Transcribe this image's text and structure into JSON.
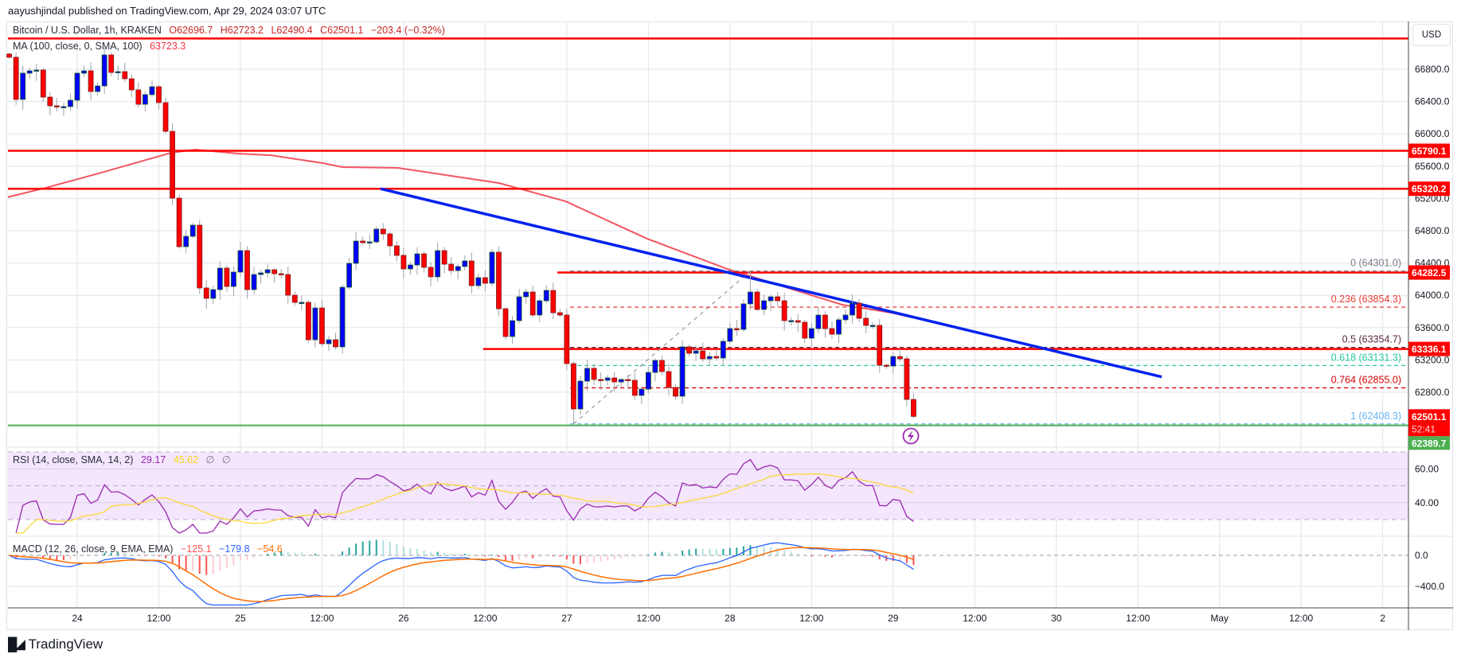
{
  "header": {
    "published": "aayushjindal published on TradingView.com, Apr 29, 2024 03:07 UTC"
  },
  "legend": {
    "symbol": "Bitcoin / U.S. Dollar, 1h, KRAKEN",
    "open": "O62696.7",
    "high": "H62723.2",
    "low": "L62490.4",
    "close": "C62501.1",
    "change": "−203.4 (−0.32%)",
    "ma_label": "MA (100, close, 0, SMA, 100)",
    "ma_value": "63723.3"
  },
  "currency": "USD",
  "rsi_legend": {
    "label": "RSI (14, close, SMA, 14, 2)",
    "rsi": "29.17",
    "sma": "45.62",
    "extra1": "∅",
    "extra2": "∅"
  },
  "macd_legend": {
    "label": "MACD (12, 26, close, 9, EMA, EMA)",
    "hist": "−125.1",
    "macd": "−179.8",
    "signal": "−54.6"
  },
  "footer": {
    "brand": "TradingView"
  },
  "colors": {
    "up": "#0000ff",
    "down": "#ff0000",
    "level": "#ff0000",
    "support": "#4caf50",
    "trend": "#0022ee",
    "ma": "#f23645",
    "rsi": "#9c27b0",
    "rsi_sma": "#fdd835",
    "macd": "#2962ff",
    "signal": "#ff6d00"
  },
  "chart_data": {
    "type": "candlestick",
    "title": "Bitcoin / U.S. Dollar, 1h, KRAKEN",
    "start_hour": -10,
    "hour_origin": "Apr 24 00:00",
    "closes": [
      66948,
      66426,
      66751,
      66780,
      66790,
      66455,
      66347,
      66337,
      66337,
      66416,
      66751,
      66780,
      66524,
      66593,
      66977,
      66760,
      66770,
      66682,
      66544,
      66366,
      66485,
      66583,
      66386,
      66031,
      65204,
      64603,
      64731,
      64869,
      64091,
      63963,
      64071,
      64337,
      64110,
      64288,
      64554,
      64071,
      64258,
      64278,
      64317,
      64268,
      64258,
      64002,
      63913,
      63913,
      63450,
      63844,
      63401,
      63450,
      63362,
      64100,
      64396,
      64672,
      64652,
      64662,
      64820,
      64761,
      64613,
      64495,
      64327,
      64376,
      64514,
      64347,
      64229,
      64554,
      64386,
      64307,
      64357,
      64426,
      64120,
      64219,
      64150,
      64534,
      63834,
      63490,
      63687,
      63982,
      64041,
      63756,
      63933,
      64061,
      63785,
      63756,
      63155,
      62593,
      62938,
      63096,
      62958,
      62948,
      62977,
      62928,
      62958,
      62948,
      62761,
      62839,
      63046,
      63194,
      63056,
      62859,
      62751,
      63362,
      63283,
      63312,
      63214,
      63243,
      63224,
      63431,
      63588,
      63578,
      63894,
      64041,
      63825,
      63933,
      63982,
      63933,
      63687,
      63687,
      63667,
      63470,
      63588,
      63756,
      63588,
      63519,
      63697,
      63756,
      63903,
      63716,
      63628,
      63628,
      63135,
      63125,
      63243,
      63214,
      62711,
      62501
    ],
    "price_ticks": [
      "66800.0",
      "66400.0",
      "66000.0",
      "65600.0",
      "65200.0",
      "64800.0",
      "64400.0",
      "64000.0",
      "63600.0",
      "63200.0",
      "62800.0"
    ],
    "time_ticks": [
      {
        "label": "24",
        "hour": 0
      },
      {
        "label": "12:00",
        "hour": 12
      },
      {
        "label": "25",
        "hour": 24
      },
      {
        "label": "12:00",
        "hour": 36
      },
      {
        "label": "26",
        "hour": 48
      },
      {
        "label": "12:00",
        "hour": 60
      },
      {
        "label": "27",
        "hour": 72
      },
      {
        "label": "12:00",
        "hour": 84
      },
      {
        "label": "28",
        "hour": 96
      },
      {
        "label": "12:00",
        "hour": 108
      },
      {
        "label": "29",
        "hour": 120
      },
      {
        "label": "12:00",
        "hour": 132
      },
      {
        "label": "30",
        "hour": 144
      },
      {
        "label": "12:00",
        "hour": 156
      },
      {
        "label": "May",
        "hour": 168
      },
      {
        "label": "12:00",
        "hour": 180
      },
      {
        "label": "2",
        "hour": 192
      }
    ],
    "ma100": [
      [
        -10.2,
        65216
      ],
      [
        -4.7,
        65330
      ],
      [
        2.3,
        65490
      ],
      [
        13.8,
        65765
      ],
      [
        17.3,
        65805
      ],
      [
        23.8,
        65755
      ],
      [
        28.5,
        65735
      ],
      [
        36.1,
        65637
      ],
      [
        39,
        65588
      ],
      [
        47.2,
        65578
      ],
      [
        62,
        65391
      ],
      [
        71.8,
        65165
      ],
      [
        83.8,
        64702
      ],
      [
        95.6,
        64327
      ],
      [
        105.7,
        64061
      ],
      [
        112.5,
        63884
      ],
      [
        120,
        63780
      ],
      [
        123,
        63723
      ]
    ],
    "levels": [
      {
        "price": 67180,
        "from_hour": null,
        "label": ""
      },
      {
        "price": 65790.1,
        "from_hour": null,
        "label": "65790.1"
      },
      {
        "price": 65320.2,
        "from_hour": null,
        "label": "65320.2"
      },
      {
        "price": 64282.5,
        "from_hour": 70.6,
        "label": "64282.5"
      },
      {
        "price": 63336.1,
        "from_hour": 59.7,
        "label": "63336.1"
      }
    ],
    "support": {
      "price": 62389.7,
      "label": "62389.7"
    },
    "trendline": {
      "from": [
        44.6,
        65320
      ],
      "to": [
        159.5,
        62990
      ]
    },
    "fib": {
      "from": [
        73,
        62408.3
      ],
      "to": [
        99,
        64301.0
      ],
      "levels": [
        {
          "text": "0 (64301.0)",
          "price": 64301.0,
          "color": "#787b86"
        },
        {
          "text": "0.236 (63854.3)",
          "price": 63854.3,
          "color": "#e53935"
        },
        {
          "text": "0.5 (63354.7)",
          "price": 63354.7,
          "color": "#5d2a42"
        },
        {
          "text": "0.618 (63131.3)",
          "price": 63131.3,
          "color": "#26c6a0"
        },
        {
          "text": "0.764 (62855.0)",
          "price": 62855.0,
          "color": "#d50000"
        },
        {
          "text": "1 (62408.3)",
          "price": 62408.3,
          "color": "#64b5f6"
        }
      ]
    },
    "last_price": {
      "value": "62501.1",
      "price": 62501.1,
      "countdown": "52:41"
    },
    "rsi_ticks": [
      {
        "label": "60.00",
        "value": 60
      },
      {
        "label": "40.00",
        "value": 40
      }
    ],
    "macd_ticks": [
      {
        "label": "0.0",
        "value": 0
      },
      {
        "label": "−400.0",
        "value": -400
      }
    ]
  }
}
